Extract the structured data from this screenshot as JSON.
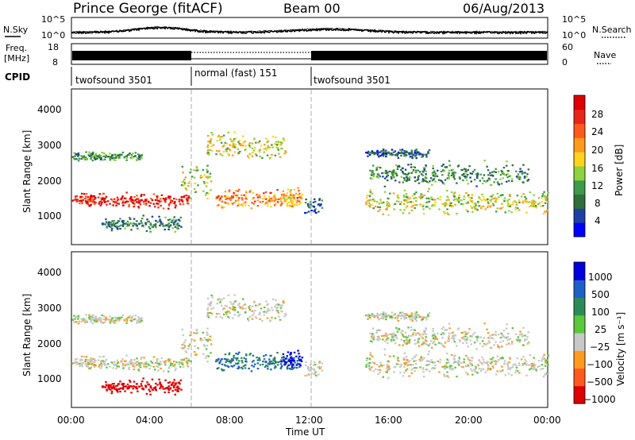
{
  "header": {
    "station": "Prince George (fitACF)",
    "beam": "Beam 00",
    "date": "06/Aug/2013"
  },
  "noise_panel": {
    "left_label": "N.Sky",
    "right_label": "N.Search",
    "left_ticks": [
      "10^5",
      "10^0"
    ],
    "right_ticks": [
      "10^5",
      "10^0"
    ]
  },
  "freq_panel": {
    "label_line1": "Freq.",
    "label_line2": "[MHz]",
    "right_label": "Nave",
    "left_ticks": [
      "18",
      "8"
    ],
    "right_ticks": [
      "60",
      "0"
    ]
  },
  "cpid": {
    "label": "CPID",
    "segments": [
      {
        "name": "twofsound 3501",
        "start_hour": 0,
        "end_hour": 6
      },
      {
        "name": "normal (fast) 151",
        "start_hour": 6,
        "end_hour": 12
      },
      {
        "name": "twofsound 3501",
        "start_hour": 12,
        "end_hour": 24
      }
    ]
  },
  "x_axis": {
    "label": "Time UT",
    "ticks": [
      "00:00",
      "04:00",
      "08:00",
      "12:00",
      "16:00",
      "20:00",
      "00:00"
    ]
  },
  "power_panel": {
    "ylabel": "Slant Range [km]",
    "yticks": [
      "4000",
      "3000",
      "2000",
      "1000"
    ],
    "colorbar_label": "Power [dB]",
    "colorbar_ticks": [
      "28",
      "24",
      "20",
      "16",
      "12",
      "8",
      "4"
    ],
    "colors": [
      "#0000ff",
      "#1e3fa6",
      "#2f6f3a",
      "#3c9a4a",
      "#8fd13e",
      "#ffd21e",
      "#ff9a1e",
      "#ff5a1e",
      "#e8261c",
      "#dd0000"
    ]
  },
  "velocity_panel": {
    "ylabel": "Slant Range [km]",
    "yticks": [
      "4000",
      "3000",
      "2000",
      "1000"
    ],
    "colorbar_label": "Velocity [m s⁻¹]",
    "colorbar_ticks": [
      "1000",
      "500",
      "100",
      "25",
      "−25",
      "−100",
      "−500",
      "−1000"
    ],
    "colors": [
      "#0000dd",
      "#1f5fc8",
      "#2e8b57",
      "#5ac83c",
      "#c8c8c8",
      "#ff9a1e",
      "#ff5a1e",
      "#dd0000"
    ]
  },
  "chart_data": {
    "type": "heatmap",
    "title": "Prince George (fitACF)  Beam 00  06/Aug/2013",
    "xlabel": "Time UT",
    "ylabel": "Slant Range [km]",
    "xlim_hours": [
      0,
      24
    ],
    "ylim_km": [
      180,
      4600
    ],
    "series": [
      {
        "name": "Power [dB]",
        "color_range": [
          0,
          30
        ]
      },
      {
        "name": "Velocity [m s⁻¹]",
        "color_range": [
          -1000,
          1000
        ]
      }
    ]
  }
}
